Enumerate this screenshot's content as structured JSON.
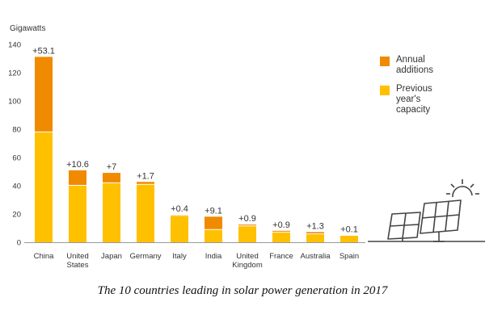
{
  "chart_data": {
    "type": "bar",
    "stacked": true,
    "title": "The 10 countries leading in solar power generation in 2017",
    "ylabel": "Gigawatts",
    "xlabel": "",
    "ylim": [
      0,
      140
    ],
    "yticks": [
      0,
      20,
      40,
      60,
      80,
      100,
      120,
      140
    ],
    "grid": false,
    "legend_position": "right",
    "categories": [
      "China",
      "United States",
      "Japan",
      "Germany",
      "Italy",
      "India",
      "United Kingdom",
      "France",
      "Australia",
      "Spain"
    ],
    "category_lines": [
      [
        "China"
      ],
      [
        "United",
        "States"
      ],
      [
        "Japan"
      ],
      [
        "Germany"
      ],
      [
        "Italy"
      ],
      [
        "India"
      ],
      [
        "United",
        "Kingdom"
      ],
      [
        "France"
      ],
      [
        "Australia"
      ],
      [
        "Spain"
      ]
    ],
    "series": [
      {
        "name": "Previous year's capacity",
        "color": "#FFC000",
        "values": [
          78.1,
          40.3,
          42.1,
          41.0,
          19.0,
          9.0,
          11.6,
          7.2,
          5.9,
          4.8
        ]
      },
      {
        "name": "Annual additions",
        "color": "#F08A00",
        "values": [
          53.1,
          10.6,
          7.0,
          1.7,
          0.4,
          9.1,
          0.9,
          0.9,
          1.3,
          0.1
        ]
      }
    ],
    "annotations": [
      "+53.1",
      "+10.6",
      "+7",
      "+1.7",
      "+0.4",
      "+9.1",
      "+0.9",
      "+0.9",
      "+1.3",
      "+0.1"
    ]
  },
  "legend": {
    "annual_lines": [
      "Annual",
      "additions"
    ],
    "previous_lines": [
      "Previous",
      "year's",
      "capacity"
    ]
  },
  "colors": {
    "annual": "#F08A00",
    "previous": "#FFC000",
    "axis": "#999999",
    "text": "#333333"
  },
  "caption": "The 10 countries leading in solar power generation in 2017"
}
